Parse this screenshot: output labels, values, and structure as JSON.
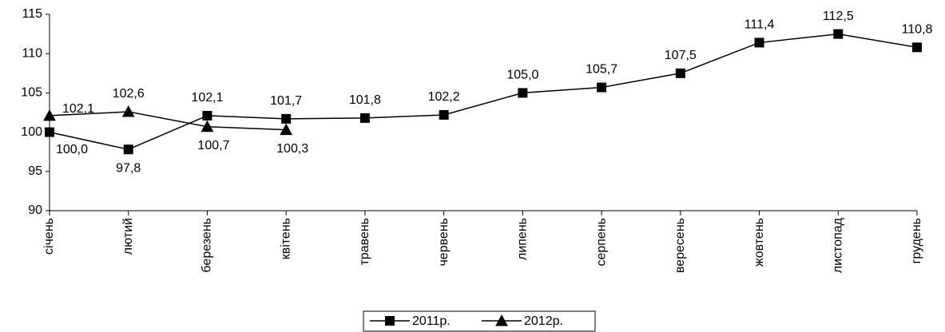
{
  "chart_data": {
    "type": "line",
    "categories": [
      "січень",
      "лютий",
      "березень",
      "квітень",
      "травень",
      "червень",
      "липень",
      "серпень",
      "вересень",
      "жовтень",
      "листопад",
      "грудень"
    ],
    "series": [
      {
        "name": "2011р.",
        "color": "#000000",
        "marker": "square",
        "values": [
          100.0,
          97.8,
          102.1,
          101.7,
          101.8,
          102.2,
          105.0,
          105.7,
          107.5,
          111.4,
          112.5,
          110.8
        ],
        "value_labels": [
          "100,0",
          "97,8",
          "102,1",
          "101,7",
          "101,8",
          "102,2",
          "105,0",
          "105,7",
          "107,5",
          "111,4",
          "112,5",
          "110,8"
        ]
      },
      {
        "name": "2012р.",
        "color": "#000000",
        "marker": "triangle",
        "values": [
          102.1,
          102.6,
          100.7,
          100.3,
          null,
          null,
          null,
          null,
          null,
          null,
          null,
          null
        ],
        "value_labels": [
          "102,1",
          "102,6",
          "100,7",
          "100,3",
          null,
          null,
          null,
          null,
          null,
          null,
          null,
          null
        ]
      }
    ],
    "ylim": [
      90,
      115
    ],
    "yticks": [
      90,
      95,
      100,
      105,
      110,
      115
    ],
    "legend": "bottom"
  }
}
